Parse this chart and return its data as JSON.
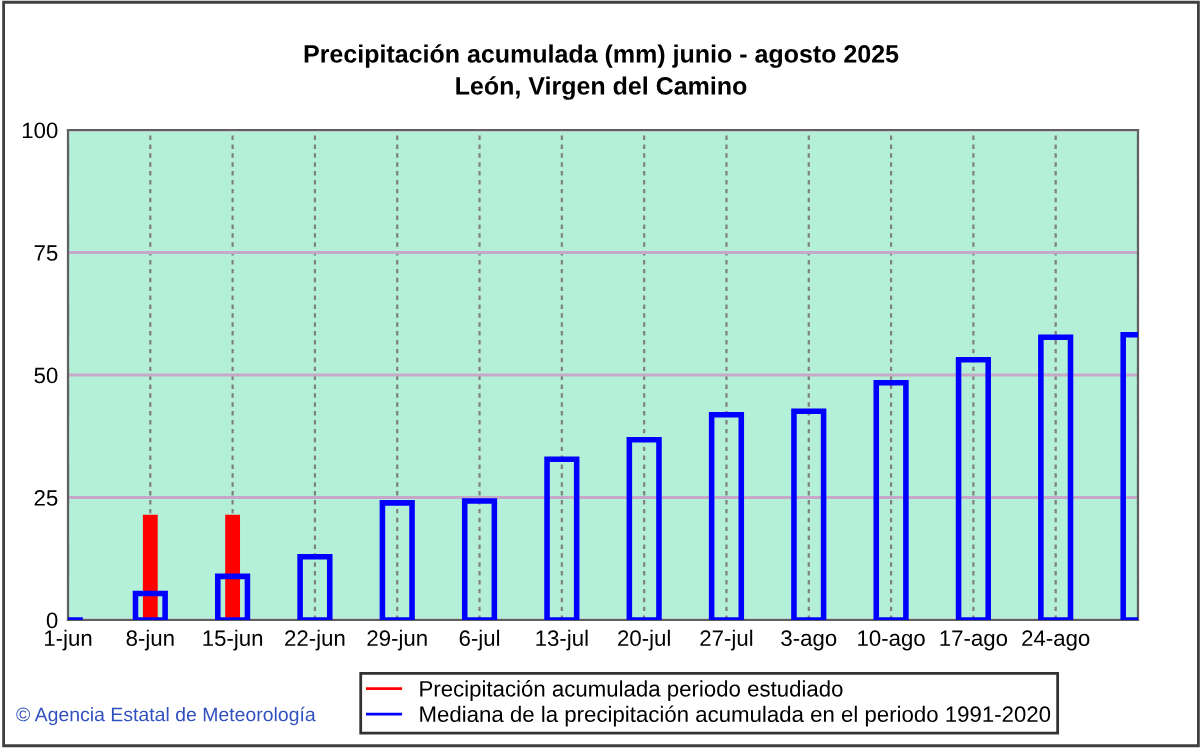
{
  "chart_data": {
    "type": "bar",
    "title": "Precipitación acumulada (mm) junio - agosto 2025",
    "subtitle": "León, Virgen del Camino",
    "categories": [
      "1-jun",
      "8-jun",
      "15-jun",
      "22-jun",
      "29-jun",
      "6-jul",
      "13-jul",
      "20-jul",
      "27-jul",
      "3-ago",
      "10-ago",
      "17-ago",
      "24-ago",
      null
    ],
    "series": [
      {
        "name": "Precipitación acumulada periodo estudiado",
        "color": "#ff0000",
        "values": [
          0,
          21.5,
          21.5,
          null,
          null,
          null,
          null,
          null,
          null,
          null,
          null,
          null,
          null,
          null
        ]
      },
      {
        "name": "Mediana de la precipitación acumulada en el periodo 1991-2020",
        "color": "#0000ff",
        "values": [
          0,
          5.4,
          8.9,
          12.9,
          23.9,
          24.3,
          32.8,
          36.8,
          41.9,
          42.6,
          48.4,
          53.1,
          57.7,
          58.2
        ]
      }
    ],
    "ylim": [
      0,
      100
    ],
    "yticks": [
      0,
      25,
      50,
      75,
      100
    ],
    "grid": true,
    "legend": "bottom",
    "annotations": [
      "© Agencia Estatal de Meteorología"
    ]
  }
}
